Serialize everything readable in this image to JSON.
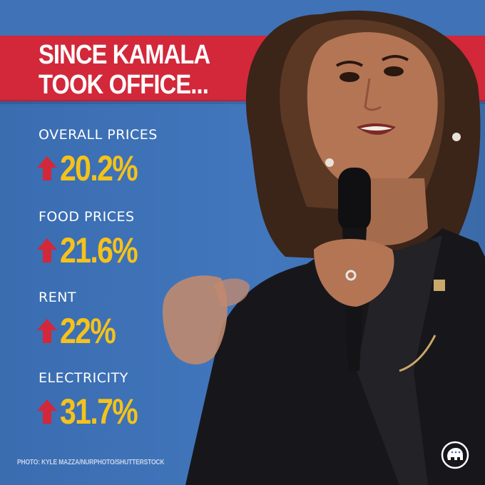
{
  "headline": {
    "line1": "SINCE KAMALA",
    "line2": "TOOK OFFICE..."
  },
  "stats": [
    {
      "label": "OVERALL PRICES",
      "value": "20.2%"
    },
    {
      "label": "FOOD PRICES",
      "value": "21.6%"
    },
    {
      "label": "RENT",
      "value": "22%"
    },
    {
      "label": "ELECTRICITY",
      "value": "31.7%"
    }
  ],
  "photo_credit": "PHOTO: KYLE MAZZA/NURPHOTO/SHUTTERSTOCK",
  "colors": {
    "background_blue": "#3d6fb3",
    "banner_red": "#d2283a",
    "value_yellow": "#f5c21b",
    "arrow_red": "#d2283a",
    "text_white": "#ffffff"
  },
  "icons": {
    "arrow": "up-arrow-icon",
    "logo": "elephant-logo-icon"
  }
}
